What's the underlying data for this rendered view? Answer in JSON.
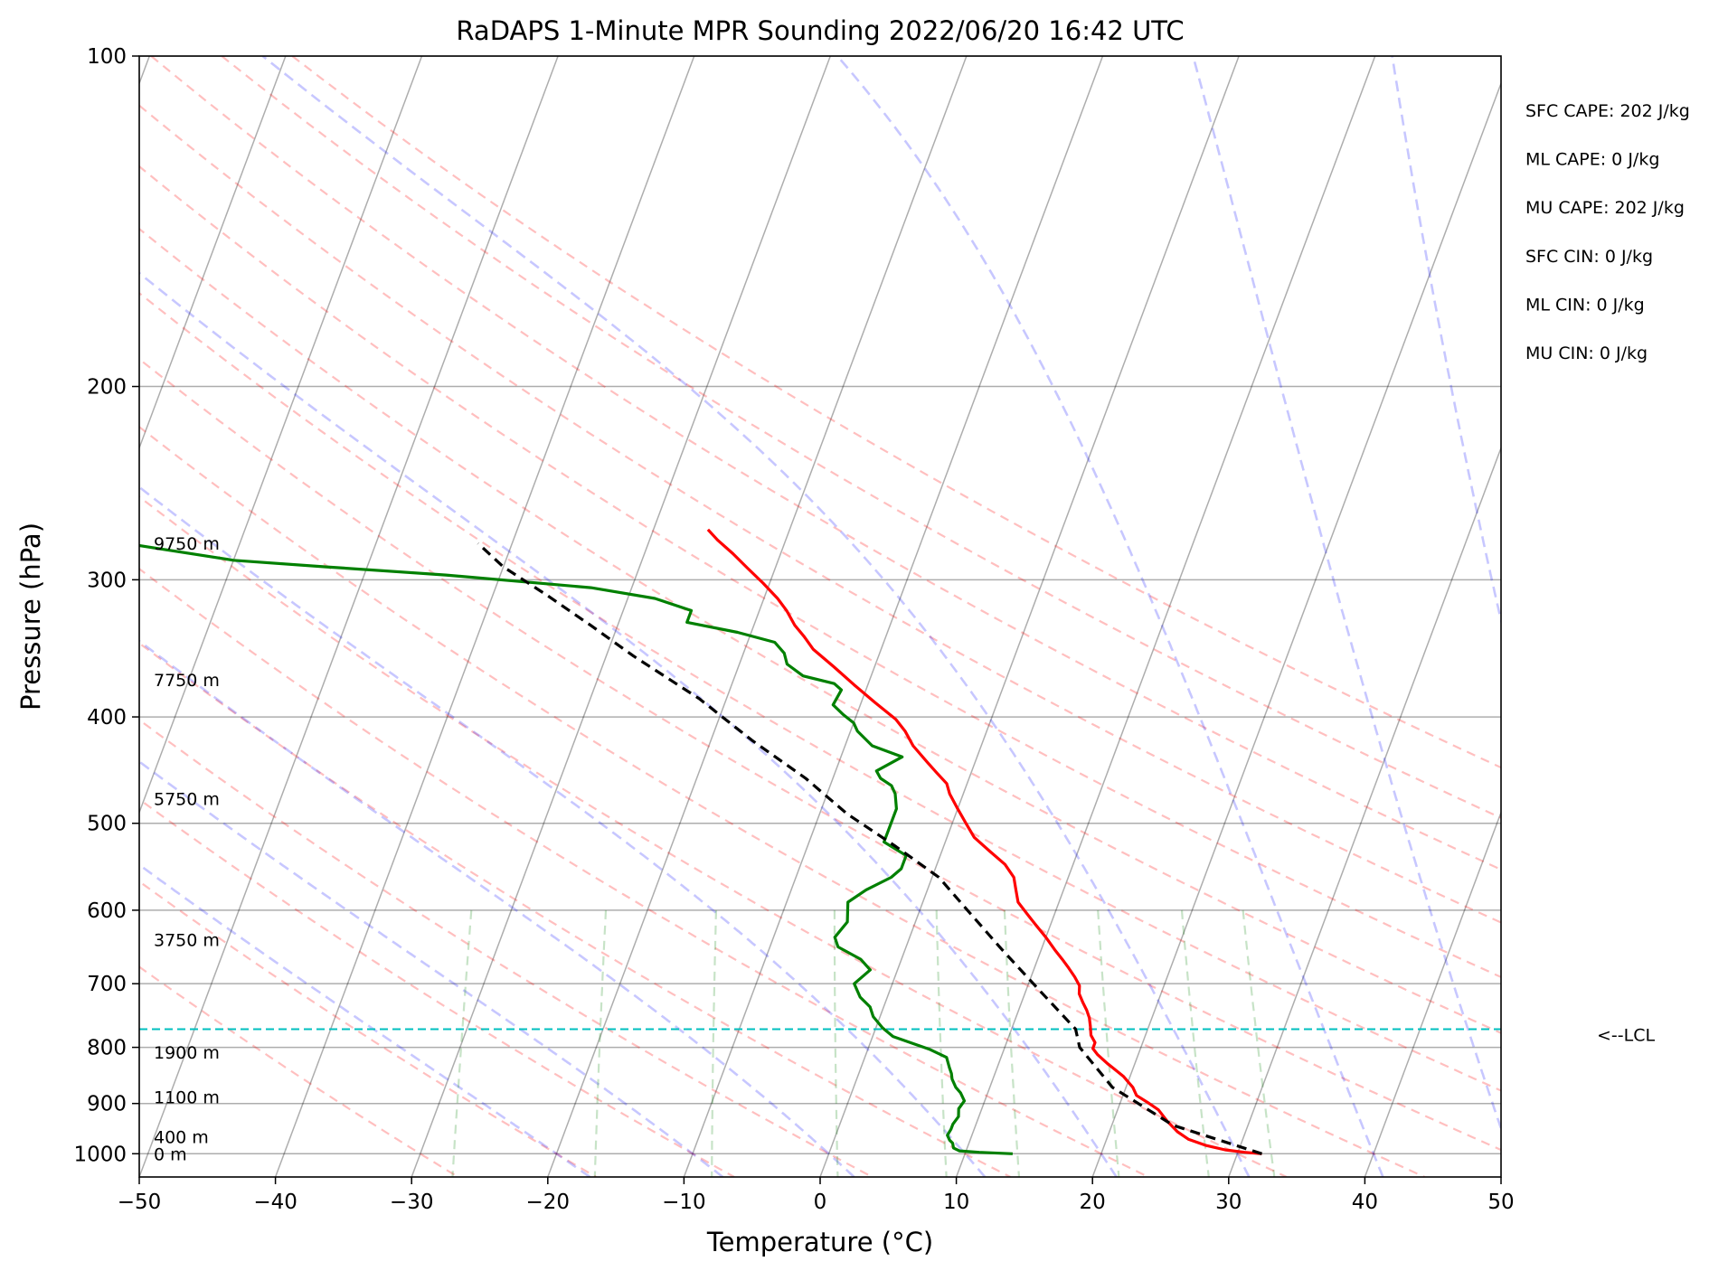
{
  "chart_data": {
    "type": "skew-t",
    "title": "RaDAPS 1-Minute MPR Sounding 2022/06/20 16:42 UTC",
    "xlabel": "Temperature (°C)",
    "ylabel": "Pressure (hPa)",
    "xlim": [
      -50,
      50
    ],
    "ylim": [
      1050,
      100
    ],
    "y_scale": "log",
    "x_ticks": [
      -50,
      -40,
      -30,
      -20,
      -10,
      0,
      10,
      20,
      30,
      40,
      50
    ],
    "x_tick_labels": [
      "−50",
      "−40",
      "−30",
      "−20",
      "−10",
      "0",
      "10",
      "20",
      "30",
      "40",
      "50"
    ],
    "y_ticks": [
      100,
      200,
      300,
      400,
      500,
      600,
      700,
      800,
      900,
      1000
    ],
    "y_tick_labels": [
      "100",
      "200",
      "300",
      "400",
      "500",
      "600",
      "700",
      "800",
      "900",
      "1000"
    ],
    "grid": true,
    "series": [
      {
        "color": "#ff0000",
        "points": [
          [
            31.8,
            1000
          ],
          [
            30.5,
            997
          ],
          [
            29.0,
            992
          ],
          [
            27.5,
            983
          ],
          [
            26.0,
            970
          ],
          [
            25.0,
            955
          ],
          [
            24.0,
            935
          ],
          [
            23.0,
            912
          ],
          [
            22.0,
            898
          ],
          [
            21.0,
            885
          ],
          [
            20.5,
            870
          ],
          [
            20.0,
            860
          ],
          [
            19.5,
            850
          ],
          [
            18.5,
            835
          ],
          [
            18.0,
            828
          ],
          [
            17.0,
            812
          ],
          [
            16.5,
            802
          ],
          [
            16.5,
            792
          ],
          [
            16.0,
            780
          ],
          [
            15.7,
            765
          ],
          [
            15.4,
            752
          ],
          [
            15.0,
            740
          ],
          [
            14.5,
            728
          ],
          [
            14.0,
            715
          ],
          [
            13.8,
            703
          ],
          [
            13.2,
            690
          ],
          [
            12.5,
            677
          ],
          [
            11.8,
            665
          ],
          [
            11.0,
            652
          ],
          [
            10.0,
            635
          ],
          [
            9.0,
            620
          ],
          [
            8.0,
            605
          ],
          [
            7.0,
            590
          ],
          [
            6.5,
            575
          ],
          [
            6.0,
            560
          ],
          [
            5.0,
            545
          ],
          [
            3.5,
            530
          ],
          [
            2.0,
            515
          ],
          [
            1.0,
            500
          ],
          [
            0.0,
            485
          ],
          [
            -1.0,
            470
          ],
          [
            -1.5,
            460
          ],
          [
            -2.5,
            450
          ],
          [
            -3.5,
            440
          ],
          [
            -5.0,
            425
          ],
          [
            -6.0,
            412
          ],
          [
            -7.0,
            402
          ],
          [
            -9.0,
            388
          ],
          [
            -11.0,
            374
          ],
          [
            -13.0,
            360
          ],
          [
            -15.0,
            347
          ],
          [
            -16.0,
            338
          ],
          [
            -17.0,
            330
          ],
          [
            -18.0,
            320
          ],
          [
            -19.0,
            312
          ],
          [
            -20.5,
            302
          ],
          [
            -22.0,
            293
          ],
          [
            -23.5,
            284
          ],
          [
            -25.0,
            276
          ],
          [
            -26.0,
            270
          ]
        ]
      },
      {
        "color": "#008000",
        "points": [
          [
            13.5,
            1000
          ],
          [
            11.0,
            997
          ],
          [
            9.5,
            994
          ],
          [
            9.0,
            988
          ],
          [
            8.8,
            978
          ],
          [
            8.5,
            972
          ],
          [
            8.2,
            962
          ],
          [
            8.3,
            950
          ],
          [
            8.3,
            940
          ],
          [
            8.5,
            925
          ],
          [
            8.3,
            910
          ],
          [
            8.5,
            895
          ],
          [
            8.0,
            880
          ],
          [
            7.5,
            870
          ],
          [
            7.0,
            855
          ],
          [
            6.8,
            845
          ],
          [
            6.5,
            835
          ],
          [
            6.0,
            817
          ],
          [
            4.5,
            803
          ],
          [
            1.5,
            782
          ],
          [
            0.5,
            768
          ],
          [
            -0.5,
            750
          ],
          [
            -1.0,
            735
          ],
          [
            -2.0,
            720
          ],
          [
            -2.8,
            700
          ],
          [
            -2.0,
            680
          ],
          [
            -3.0,
            665
          ],
          [
            -5.0,
            648
          ],
          [
            -5.5,
            635
          ],
          [
            -5.0,
            615
          ],
          [
            -5.5,
            590
          ],
          [
            -4.5,
            575
          ],
          [
            -3.0,
            560
          ],
          [
            -2.5,
            550
          ],
          [
            -2.5,
            535
          ],
          [
            -4.5,
            520
          ],
          [
            -4.5,
            500
          ],
          [
            -4.5,
            485
          ],
          [
            -5.0,
            470
          ],
          [
            -5.5,
            462
          ],
          [
            -6.5,
            455
          ],
          [
            -7.0,
            448
          ],
          [
            -5.5,
            435
          ],
          [
            -8.0,
            425
          ],
          [
            -9.5,
            412
          ],
          [
            -10.0,
            405
          ],
          [
            -11.0,
            398
          ],
          [
            -12.0,
            390
          ],
          [
            -11.8,
            378
          ],
          [
            -12.5,
            373
          ],
          [
            -15.0,
            367
          ],
          [
            -16.5,
            358
          ],
          [
            -17.0,
            350
          ],
          [
            -18.0,
            342
          ],
          [
            -21.0,
            335
          ],
          [
            -25.0,
            328
          ],
          [
            -25.0,
            320
          ],
          [
            -28.0,
            312
          ],
          [
            -33.0,
            305
          ],
          [
            -44.0,
            297
          ],
          [
            -53.0,
            292
          ],
          [
            -60.0,
            288
          ],
          [
            -65.0,
            282
          ],
          [
            -70.0,
            276
          ]
        ]
      },
      {
        "color": "#000000",
        "points": [
          [
            31.8,
            1000
          ],
          [
            24.5,
            942
          ],
          [
            19.0,
            870
          ],
          [
            15.5,
            800
          ],
          [
            14.7,
            770
          ],
          [
            11.0,
            710
          ],
          [
            7.0,
            650
          ],
          [
            3.5,
            600
          ],
          [
            0.5,
            560
          ],
          [
            -3.5,
            525
          ],
          [
            -8.0,
            490
          ],
          [
            -12.0,
            455
          ],
          [
            -17.0,
            420
          ],
          [
            -22.0,
            385
          ],
          [
            -28.0,
            352
          ],
          [
            -32.0,
            330
          ],
          [
            -36.0,
            310
          ],
          [
            -40.0,
            292
          ],
          [
            -42.5,
            278
          ]
        ]
      }
    ],
    "lcl_pressure": 770,
    "lcl_label": "<--LCL",
    "height_labels": [
      {
        "text": "9750 m",
        "pressure": 278
      },
      {
        "text": "7750 m",
        "pressure": 370
      },
      {
        "text": "5750 m",
        "pressure": 475
      },
      {
        "text": "3750 m",
        "pressure": 638
      },
      {
        "text": "1900 m",
        "pressure": 808
      },
      {
        "text": "1100 m",
        "pressure": 888
      },
      {
        "text": "400 m",
        "pressure": 965
      },
      {
        "text": "0 m",
        "pressure": 1000
      }
    ],
    "parameters": [
      "SFC CAPE: 202 J/kg",
      "ML CAPE: 0 J/kg",
      "MU CAPE: 202 J/kg",
      "SFC CIN: 0 J/kg",
      "ML CIN: 0 J/kg",
      "MU CIN: 0 J/kg"
    ],
    "reference_lines": {
      "dry_adiabats": {
        "color": "#ff0000",
        "theta_c": [
          -30,
          -20,
          -10,
          0,
          10,
          20,
          30,
          40,
          50,
          60,
          70,
          80,
          90,
          100,
          110,
          120
        ]
      },
      "moist_adiabats": {
        "color": "#0000ff",
        "theta_c": [
          -20,
          -10,
          0,
          10,
          20,
          30,
          40,
          50,
          60,
          70
        ]
      },
      "mixing_ratio_lines": {
        "color": "#008000",
        "w_gkg": [
          0.4,
          1,
          2,
          4,
          7,
          10,
          16,
          24,
          32
        ]
      }
    }
  }
}
